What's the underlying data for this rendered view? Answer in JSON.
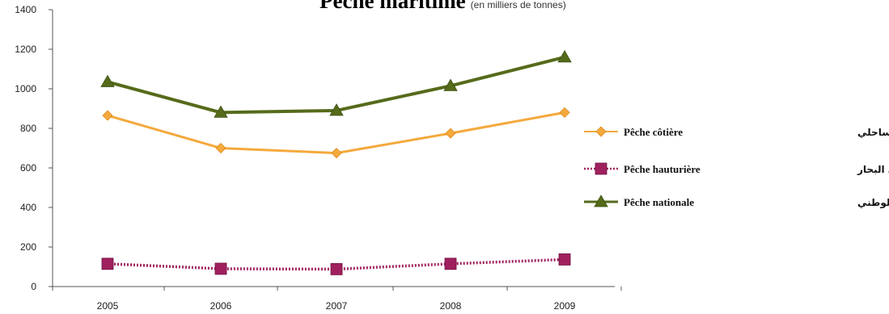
{
  "chart_data": {
    "type": "line",
    "title": "Pêche maritime",
    "subtitle": "(en milliers de tonnes)",
    "xlabel": "",
    "ylabel": "",
    "categories": [
      "2005",
      "2006",
      "2007",
      "2008",
      "2009"
    ],
    "ylim": [
      0,
      1400
    ],
    "yticks": [
      0,
      200,
      400,
      600,
      800,
      1000,
      1200,
      1400
    ],
    "grid": false,
    "legend_position": "right",
    "series": [
      {
        "name": "Pêche côtière",
        "name_ar": "الصيد الساحلي",
        "values": [
          865,
          700,
          675,
          775,
          880
        ],
        "color": "#f4a93c",
        "marker": "diamond"
      },
      {
        "name": "Pêche hauturière",
        "name_ar": "الصيد في أعالي البحار",
        "values": [
          115,
          90,
          88,
          115,
          137
        ],
        "color": "#a0205e",
        "marker": "square"
      },
      {
        "name": "Pêche nationale",
        "name_ar": "الصيد الوطني",
        "values": [
          1035,
          880,
          890,
          1015,
          1160
        ],
        "color": "#556b1a",
        "marker": "triangle"
      }
    ]
  }
}
